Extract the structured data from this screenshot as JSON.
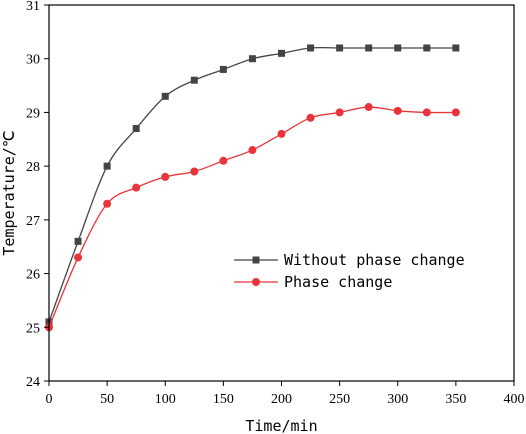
{
  "chart_data": {
    "type": "line",
    "xlabel": "Time/min",
    "ylabel": "Temperature/℃",
    "xlim": [
      0,
      400
    ],
    "ylim": [
      24,
      31
    ],
    "xticks": [
      0,
      50,
      100,
      150,
      200,
      250,
      300,
      350,
      400
    ],
    "yticks": [
      24,
      25,
      26,
      27,
      28,
      29,
      30,
      31
    ],
    "grid": false,
    "legend_position": "center-right",
    "series": [
      {
        "name": "Without phase change",
        "color": "#444444",
        "marker": "square",
        "x": [
          0,
          25,
          50,
          75,
          100,
          125,
          150,
          175,
          200,
          225,
          250,
          275,
          300,
          325,
          350
        ],
        "y": [
          25.1,
          26.6,
          28.0,
          28.7,
          29.3,
          29.6,
          29.8,
          30.0,
          30.1,
          30.2,
          30.2,
          30.2,
          30.2,
          30.2,
          30.2
        ]
      },
      {
        "name": "Phase change",
        "color": "#e8343a",
        "marker": "circle",
        "x": [
          0,
          25,
          50,
          75,
          100,
          125,
          150,
          175,
          200,
          225,
          250,
          275,
          300,
          325,
          350
        ],
        "y": [
          25.0,
          26.3,
          27.3,
          27.6,
          27.8,
          27.9,
          28.1,
          28.3,
          28.6,
          28.9,
          29.0,
          29.1,
          29.03,
          29.0,
          29.0
        ]
      }
    ]
  }
}
